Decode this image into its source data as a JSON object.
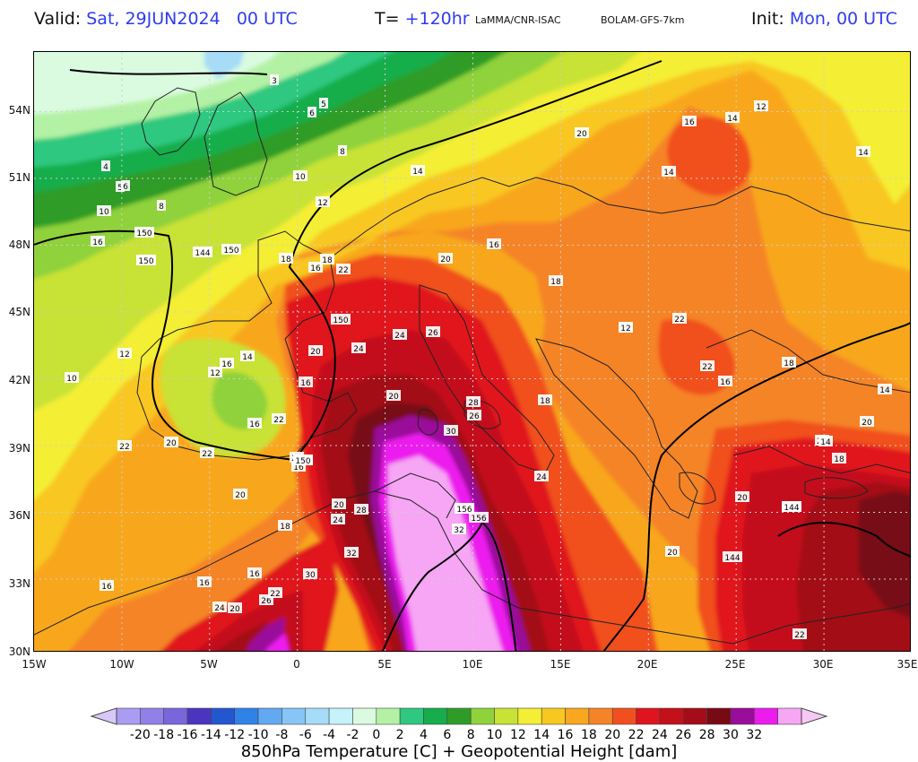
{
  "header": {
    "valid_label": "Valid:",
    "valid_value": "Sat, 29JUN2024   00 UTC",
    "lead_label": "T=",
    "lead_value": "+120hr",
    "source": "LaMMA/CNR-ISAC",
    "model": "BOLAM-GFS-7km",
    "init_label": "Init:",
    "init_value": "Mon, 00 UTC"
  },
  "map": {
    "lat_labels": [
      "54N",
      "51N",
      "48N",
      "45N",
      "42N",
      "39N",
      "36N",
      "33N",
      "30N"
    ],
    "lon_labels": [
      "15W",
      "10W",
      "5W",
      "0",
      "5E",
      "10E",
      "15E",
      "20E",
      "25E",
      "30E",
      "35E"
    ],
    "temperature_labels": [
      "4",
      "3",
      "5",
      "6",
      "8",
      "14",
      "10",
      "5",
      "6",
      "8",
      "10",
      "12",
      "150",
      "16",
      "150",
      "18",
      "16",
      "18",
      "16",
      "20",
      "18",
      "20",
      "16",
      "14",
      "12",
      "14",
      "14",
      "12",
      "10",
      "12",
      "14",
      "16",
      "16",
      "22",
      "20",
      "22",
      "20",
      "22",
      "20",
      "18",
      "16",
      "150",
      "22",
      "24",
      "26",
      "28",
      "26",
      "30",
      "20",
      "24",
      "20",
      "16",
      "18",
      "16",
      "12",
      "18",
      "16",
      "14",
      "32",
      "28",
      "24",
      "20",
      "156",
      "32",
      "30",
      "26",
      "22",
      "24",
      "20",
      "16",
      "16",
      "16",
      "20",
      "22",
      "22",
      "24",
      "20",
      "20",
      "22",
      "144",
      "20",
      "18",
      "14"
    ],
    "geopotential_contours": [
      "144",
      "150",
      "156",
      "150",
      "144"
    ]
  },
  "colorbar": {
    "title": "850hPa Temperature [C] + Geopotential Height [dam]",
    "ticks": [
      "-20",
      "-18",
      "-16",
      "-14",
      "-12",
      "-10",
      "-8",
      "-6",
      "-4",
      "-2",
      "0",
      "2",
      "4",
      "6",
      "8",
      "10",
      "12",
      "14",
      "16",
      "18",
      "20",
      "22",
      "24",
      "26",
      "28",
      "30",
      "32"
    ],
    "colors": [
      "#a99cf2",
      "#9180e8",
      "#7a66dc",
      "#4b34c0",
      "#2456cf",
      "#2f82e8",
      "#62a9f2",
      "#86c5f6",
      "#a6dcf8",
      "#c6f2fb",
      "#dafbe0",
      "#b3f2a4",
      "#2ec880",
      "#16ad4c",
      "#2f9c28",
      "#8fd23a",
      "#c8e235",
      "#f4ee35",
      "#f8c720",
      "#f8a71e",
      "#f58428",
      "#f1501e",
      "#e0141e",
      "#c4101b",
      "#a30c18",
      "#770a14",
      "#9a0c9a",
      "#ec1cee",
      "#f6a6f4"
    ]
  }
}
